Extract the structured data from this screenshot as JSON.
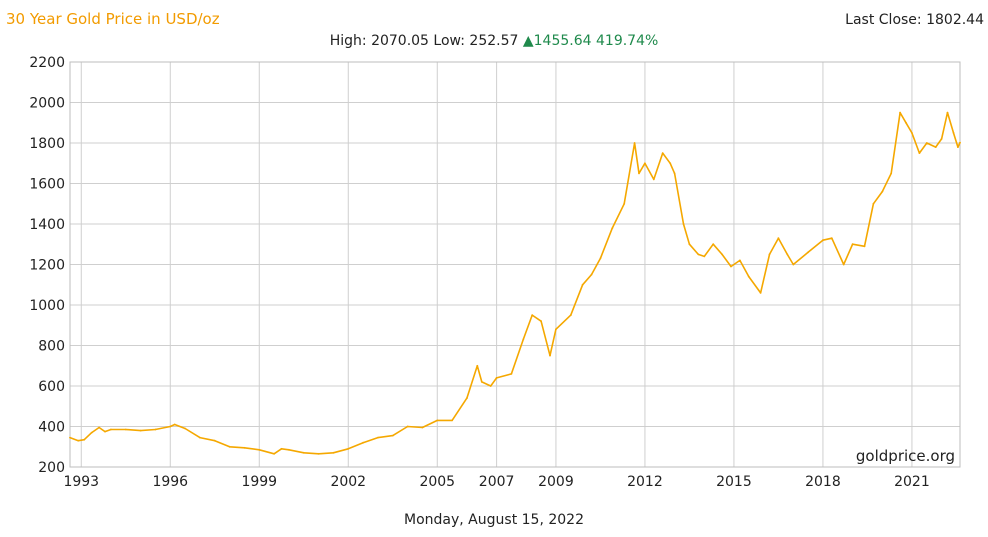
{
  "header": {
    "title": "30 Year Gold Price in USD/oz",
    "last_close_label": "Last Close:",
    "last_close_value": "1802.44",
    "high_label": "High:",
    "high_value": "2070.05",
    "low_label": "Low:",
    "low_value": "252.57",
    "change_value": "1455.64",
    "change_pct": "419.74%",
    "up_color": "#1f8a4c"
  },
  "watermark": "goldprice.org",
  "footer": {
    "date": "Monday, August 15, 2022"
  },
  "colors": {
    "line": "#f5a800",
    "title": "#f29b00",
    "grid": "#cfcfcf"
  },
  "chart_data": {
    "type": "line",
    "title": "30 Year Gold Price in USD/oz",
    "xlabel": "",
    "ylabel": "",
    "ylim": [
      200,
      2200
    ],
    "xlim": [
      1992.62,
      2022.62
    ],
    "y_ticks": [
      200,
      400,
      600,
      800,
      1000,
      1200,
      1400,
      1600,
      1800,
      2000,
      2200
    ],
    "x_ticks": [
      1993,
      1996,
      1999,
      2002,
      2005,
      2007,
      2009,
      2012,
      2015,
      2018,
      2021
    ],
    "x_tick_labels": [
      "1993",
      "1996",
      "1999",
      "2002",
      "2005",
      "2007",
      "2009",
      "2012",
      "2015",
      "2018",
      "2021"
    ],
    "grid": true,
    "series": [
      {
        "x": [
          1992.62,
          1992.9,
          1993.1,
          1993.35,
          1993.6,
          1993.8,
          1994.0,
          1994.5,
          1995.0,
          1995.5,
          1996.0,
          1996.15,
          1996.5,
          1997.0,
          1997.5,
          1998.0,
          1998.5,
          1999.0,
          1999.5,
          1999.75,
          2000.0,
          2000.5,
          2001.0,
          2001.5,
          2002.0,
          2002.5,
          2003.0,
          2003.5,
          2004.0,
          2004.5,
          2005.0,
          2005.5,
          2006.0,
          2006.35,
          2006.5,
          2006.8,
          2007.0,
          2007.5,
          2007.9,
          2008.2,
          2008.5,
          2008.8,
          2009.0,
          2009.5,
          2009.9,
          2010.2,
          2010.5,
          2010.9,
          2011.3,
          2011.65,
          2011.8,
          2012.0,
          2012.3,
          2012.6,
          2012.85,
          2013.0,
          2013.3,
          2013.5,
          2013.8,
          2014.0,
          2014.3,
          2014.6,
          2014.9,
          2015.2,
          2015.5,
          2015.9,
          2016.2,
          2016.5,
          2016.8,
          2017.0,
          2017.5,
          2018.0,
          2018.3,
          2018.7,
          2019.0,
          2019.4,
          2019.7,
          2020.0,
          2020.3,
          2020.6,
          2020.8,
          2021.0,
          2021.25,
          2021.5,
          2021.8,
          2022.0,
          2022.2,
          2022.4,
          2022.55,
          2022.62
        ],
        "values": [
          345,
          330,
          335,
          370,
          395,
          375,
          385,
          385,
          380,
          385,
          400,
          410,
          390,
          345,
          330,
          300,
          295,
          285,
          265,
          290,
          285,
          270,
          265,
          270,
          290,
          320,
          345,
          355,
          400,
          395,
          430,
          430,
          540,
          700,
          620,
          600,
          640,
          660,
          830,
          950,
          920,
          750,
          880,
          950,
          1100,
          1150,
          1230,
          1380,
          1500,
          1800,
          1650,
          1700,
          1620,
          1750,
          1700,
          1650,
          1400,
          1300,
          1250,
          1240,
          1300,
          1250,
          1190,
          1220,
          1140,
          1060,
          1250,
          1330,
          1250,
          1200,
          1260,
          1320,
          1330,
          1200,
          1300,
          1290,
          1500,
          1560,
          1650,
          1950,
          1900,
          1850,
          1750,
          1800,
          1780,
          1820,
          1950,
          1850,
          1780,
          1802
        ]
      }
    ]
  }
}
